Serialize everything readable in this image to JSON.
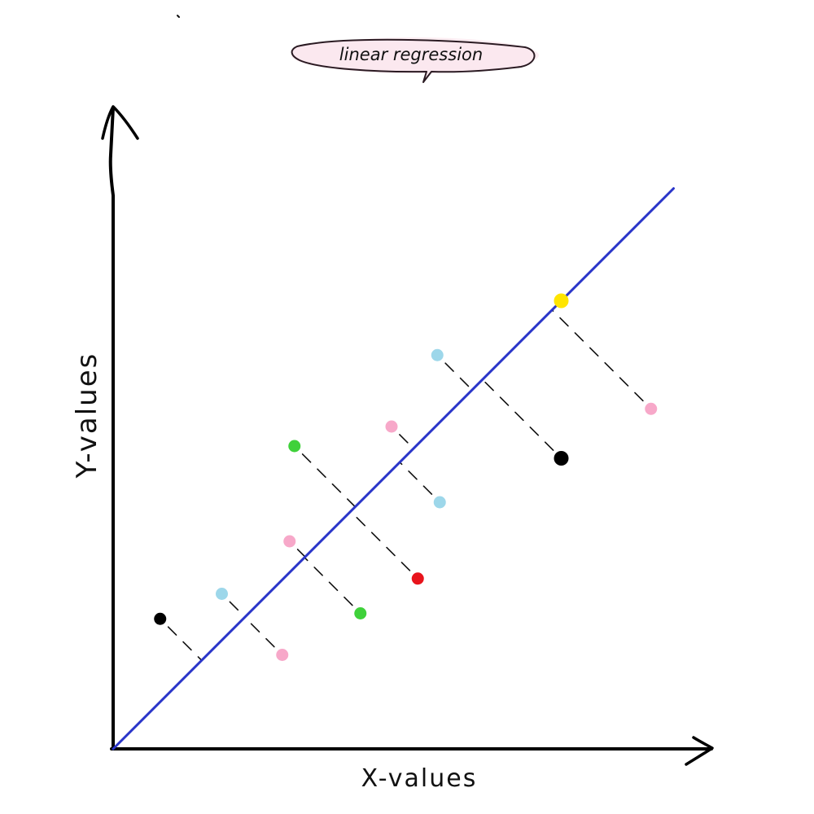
{
  "title": "linear regression",
  "xlabel": "X-values",
  "ylabel": "Y-values",
  "colors": {
    "axis": "#000000",
    "regression_line": "#2a35c9",
    "title_bubble_fill": "#fbe8ef",
    "residual": "#111111",
    "point_palette": {
      "black": "#000000",
      "light-blue": "#9dd7ea",
      "pink": "#f7a8c9",
      "green": "#3fd13a",
      "red": "#e8141c",
      "yellow": "#ffe500"
    }
  },
  "chart_data": {
    "type": "scatter",
    "title": "linear regression",
    "xlabel": "X-values",
    "ylabel": "Y-values",
    "xlim": [
      0,
      100
    ],
    "ylim": [
      0,
      100
    ],
    "grid": false,
    "regression_line": {
      "slope": 1.0,
      "intercept": 0.0
    },
    "points": [
      {
        "x": 7.7,
        "y": 21.3,
        "color": "black"
      },
      {
        "x": 17.8,
        "y": 25.4,
        "color": "light-blue"
      },
      {
        "x": 27.7,
        "y": 15.4,
        "color": "pink"
      },
      {
        "x": 28.9,
        "y": 34.0,
        "color": "pink"
      },
      {
        "x": 40.5,
        "y": 22.2,
        "color": "green"
      },
      {
        "x": 49.9,
        "y": 27.9,
        "color": "red"
      },
      {
        "x": 29.7,
        "y": 49.6,
        "color": "green"
      },
      {
        "x": 45.6,
        "y": 52.8,
        "color": "pink"
      },
      {
        "x": 53.5,
        "y": 40.4,
        "color": "light-blue"
      },
      {
        "x": 53.1,
        "y": 64.5,
        "color": "light-blue"
      },
      {
        "x": 73.4,
        "y": 47.6,
        "color": "black"
      },
      {
        "x": 73.4,
        "y": 73.4,
        "color": "yellow"
      },
      {
        "x": 88.1,
        "y": 55.7,
        "color": "pink"
      }
    ]
  }
}
